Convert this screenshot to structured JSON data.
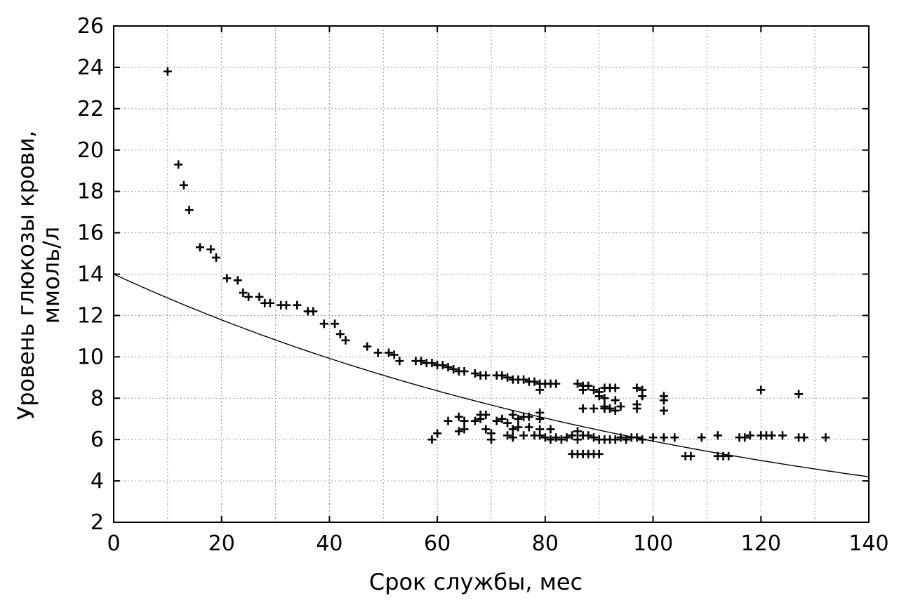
{
  "chart_data": {
    "type": "scatter",
    "title": "",
    "xlabel": "Срок службы, мес",
    "ylabel_line1": "Уровень глюкозы крови,",
    "ylabel_line2": "ммоль/л",
    "xlim": [
      0,
      140
    ],
    "ylim": [
      2,
      26
    ],
    "xticks": [
      0,
      20,
      40,
      60,
      80,
      100,
      120,
      140
    ],
    "yticks": [
      2,
      4,
      6,
      8,
      10,
      12,
      14,
      16,
      18,
      20,
      22,
      24,
      26
    ],
    "grid": true,
    "marker": "plus",
    "trend": {
      "type": "exponential",
      "a": 14.0,
      "b": -0.0086
    },
    "points": [
      [
        10,
        23.8
      ],
      [
        12,
        19.3
      ],
      [
        13,
        18.3
      ],
      [
        14,
        17.1
      ],
      [
        16,
        15.3
      ],
      [
        18,
        15.2
      ],
      [
        19,
        14.8
      ],
      [
        21,
        13.8
      ],
      [
        23,
        13.7
      ],
      [
        24,
        13.1
      ],
      [
        25,
        12.9
      ],
      [
        27,
        12.9
      ],
      [
        28,
        12.6
      ],
      [
        29,
        12.6
      ],
      [
        31,
        12.5
      ],
      [
        32,
        12.5
      ],
      [
        34,
        12.5
      ],
      [
        36,
        12.2
      ],
      [
        37,
        12.2
      ],
      [
        39,
        11.6
      ],
      [
        41,
        11.6
      ],
      [
        42,
        11.1
      ],
      [
        43,
        10.8
      ],
      [
        47,
        10.5
      ],
      [
        49,
        10.2
      ],
      [
        51,
        10.2
      ],
      [
        52,
        10.1
      ],
      [
        53,
        9.8
      ],
      [
        56,
        9.8
      ],
      [
        57,
        9.8
      ],
      [
        58,
        9.7
      ],
      [
        59,
        9.7
      ],
      [
        60,
        9.6
      ],
      [
        61,
        9.6
      ],
      [
        62,
        9.5
      ],
      [
        63,
        9.4
      ],
      [
        64,
        9.3
      ],
      [
        65,
        9.3
      ],
      [
        67,
        9.2
      ],
      [
        68,
        9.1
      ],
      [
        69,
        9.1
      ],
      [
        71,
        9.1
      ],
      [
        72,
        9.1
      ],
      [
        73,
        9.0
      ],
      [
        74,
        8.9
      ],
      [
        75,
        8.9
      ],
      [
        76,
        8.9
      ],
      [
        77,
        8.8
      ],
      [
        78,
        8.8
      ],
      [
        79,
        8.7
      ],
      [
        79,
        8.4
      ],
      [
        80,
        8.7
      ],
      [
        81,
        8.7
      ],
      [
        82,
        8.7
      ],
      [
        86,
        8.7
      ],
      [
        87,
        8.6
      ],
      [
        88,
        8.6
      ],
      [
        87,
        8.4
      ],
      [
        89,
        8.4
      ],
      [
        90,
        8.3
      ],
      [
        91,
        8.5
      ],
      [
        92,
        8.5
      ],
      [
        93,
        8.5
      ],
      [
        90,
        8.1
      ],
      [
        91,
        8.0
      ],
      [
        93,
        7.9
      ],
      [
        97,
        8.5
      ],
      [
        98,
        8.4
      ],
      [
        98,
        8.1
      ],
      [
        102,
        8.1
      ],
      [
        102,
        7.9
      ],
      [
        120,
        8.4
      ],
      [
        127,
        8.2
      ],
      [
        87,
        7.5
      ],
      [
        89,
        7.5
      ],
      [
        91,
        7.6
      ],
      [
        92,
        7.5
      ],
      [
        93,
        7.4
      ],
      [
        94,
        7.6
      ],
      [
        97,
        7.5
      ],
      [
        97,
        7.7
      ],
      [
        102,
        7.4
      ],
      [
        91,
        7.5
      ],
      [
        59,
        6.0
      ],
      [
        60,
        6.3
      ],
      [
        62,
        6.9
      ],
      [
        64,
        7.1
      ],
      [
        64,
        6.4
      ],
      [
        65,
        6.9
      ],
      [
        65,
        6.5
      ],
      [
        67,
        6.9
      ],
      [
        68,
        7.0
      ],
      [
        68,
        7.2
      ],
      [
        69,
        7.2
      ],
      [
        69,
        6.5
      ],
      [
        70,
        6.3
      ],
      [
        70,
        6.0
      ],
      [
        71,
        6.9
      ],
      [
        72,
        7.0
      ],
      [
        73,
        6.8
      ],
      [
        73,
        6.2
      ],
      [
        74,
        7.2
      ],
      [
        74,
        6.5
      ],
      [
        74,
        6.1
      ],
      [
        75,
        7.0
      ],
      [
        75,
        6.6
      ],
      [
        76,
        7.1
      ],
      [
        76,
        6.2
      ],
      [
        77,
        7.1
      ],
      [
        77,
        6.6
      ],
      [
        78,
        6.2
      ],
      [
        79,
        7.3
      ],
      [
        79,
        7.0
      ],
      [
        79,
        6.5
      ],
      [
        79,
        6.2
      ],
      [
        80,
        6.1
      ],
      [
        81,
        6.5
      ],
      [
        81,
        6.0
      ],
      [
        82,
        6.1
      ],
      [
        83,
        6.0
      ],
      [
        84,
        6.1
      ],
      [
        85,
        6.2
      ],
      [
        86,
        6.4
      ],
      [
        86,
        6.0
      ],
      [
        87,
        6.2
      ],
      [
        88,
        6.2
      ],
      [
        89,
        6.1
      ],
      [
        90,
        6.0
      ],
      [
        91,
        6.0
      ],
      [
        92,
        6.0
      ],
      [
        93,
        6.0
      ],
      [
        94,
        6.1
      ],
      [
        95,
        6.0
      ],
      [
        96,
        6.1
      ],
      [
        97,
        6.1
      ],
      [
        98,
        6.0
      ],
      [
        100,
        6.1
      ],
      [
        102,
        6.1
      ],
      [
        104,
        6.1
      ],
      [
        109,
        6.1
      ],
      [
        112,
        6.2
      ],
      [
        116,
        6.1
      ],
      [
        117,
        6.1
      ],
      [
        118,
        6.2
      ],
      [
        120,
        6.2
      ],
      [
        121,
        6.2
      ],
      [
        122,
        6.2
      ],
      [
        124,
        6.2
      ],
      [
        127,
        6.1
      ],
      [
        128,
        6.1
      ],
      [
        132,
        6.1
      ],
      [
        85,
        5.3
      ],
      [
        86,
        5.3
      ],
      [
        87,
        5.3
      ],
      [
        88,
        5.3
      ],
      [
        89,
        5.3
      ],
      [
        90,
        5.3
      ],
      [
        106,
        5.2
      ],
      [
        107,
        5.2
      ],
      [
        112,
        5.2
      ],
      [
        113,
        5.2
      ],
      [
        114,
        5.2
      ]
    ]
  }
}
